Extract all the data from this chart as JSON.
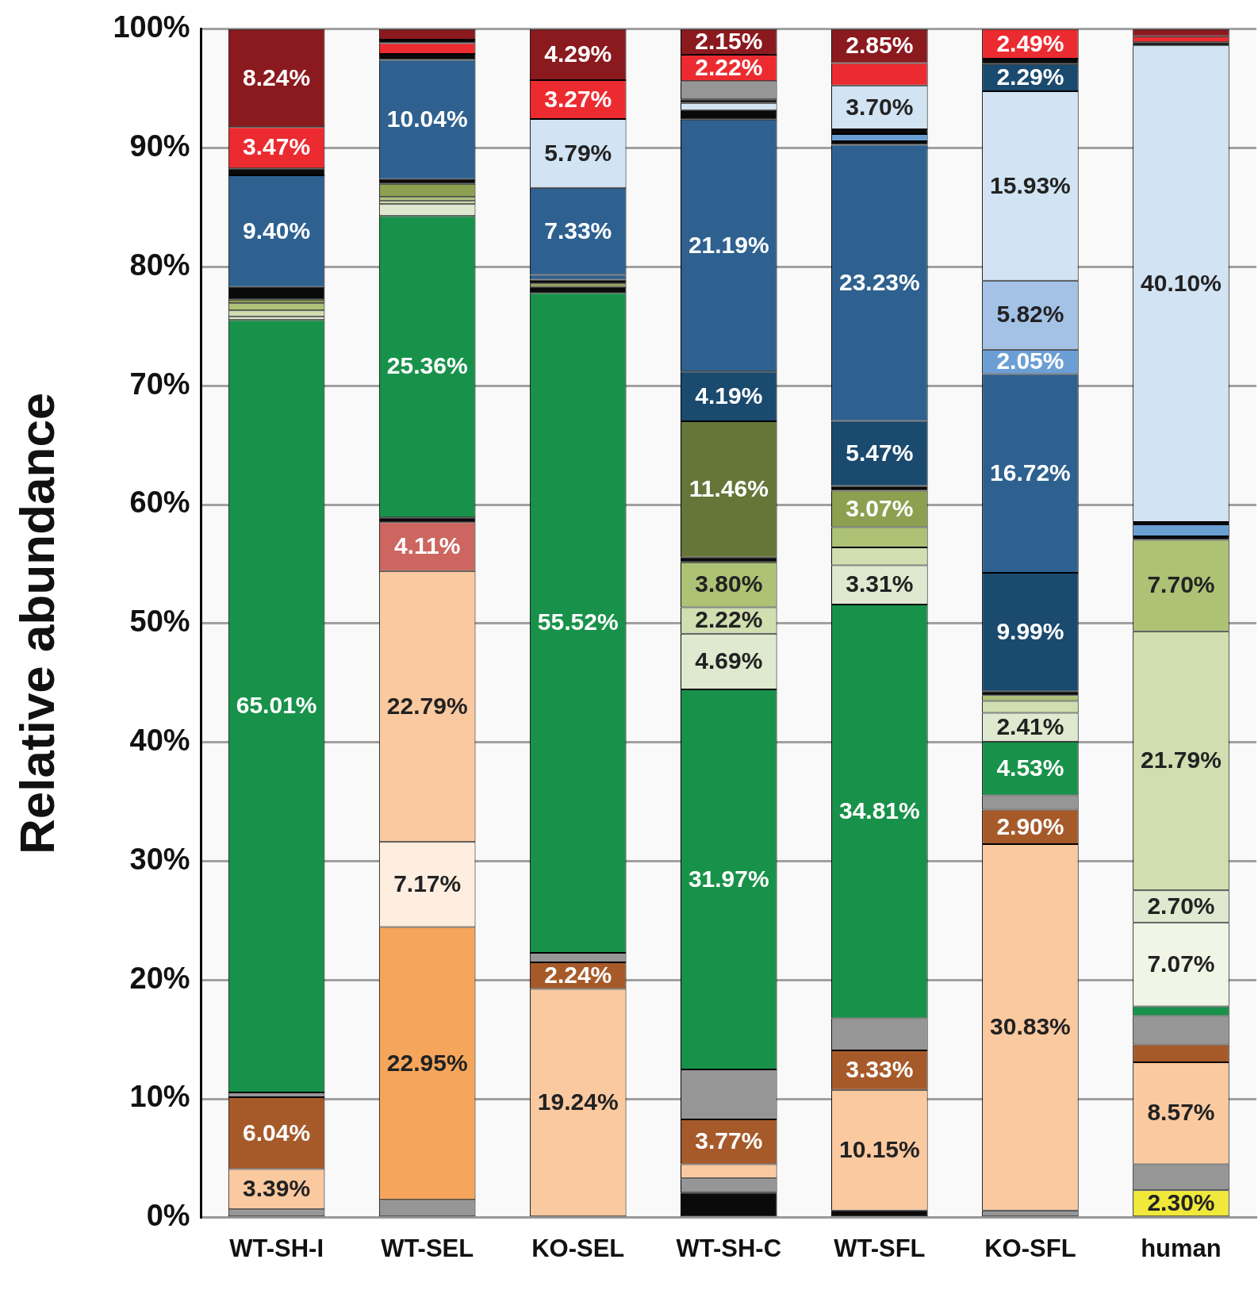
{
  "chart_data": {
    "type": "bar",
    "stacked": true,
    "ylabel": "Relative abundance",
    "categories": [
      "WT-SH-I",
      "WT-SEL",
      "KO-SEL",
      "WT-SH-C",
      "WT-SFL",
      "KO-SFL",
      "human"
    ],
    "ylim": [
      0,
      100
    ],
    "yticks": [
      {
        "value": 0,
        "label": "0%"
      },
      {
        "value": 10,
        "label": "10%"
      },
      {
        "value": 20,
        "label": "20%"
      },
      {
        "value": 30,
        "label": "30%"
      },
      {
        "value": 40,
        "label": "40%"
      },
      {
        "value": 50,
        "label": "50%"
      },
      {
        "value": 60,
        "label": "60%"
      },
      {
        "value": 70,
        "label": "70%"
      },
      {
        "value": 80,
        "label": "80%"
      },
      {
        "value": 90,
        "label": "90%"
      },
      {
        "value": 100,
        "label": "100%"
      }
    ],
    "grid": "y",
    "series": [
      {
        "values": [
          0.7,
          1.5,
          19.24,
          2.1,
          0.6,
          0.6,
          2.3
        ],
        "colors": [
          "#969696",
          "#969696",
          "#fbc9a0",
          "#0a0a0a",
          "#0a0a0a",
          "#969696",
          "#f0e83a"
        ],
        "value_labels": [
          null,
          null,
          "19.24%",
          null,
          null,
          null,
          "2.30%"
        ]
      },
      {
        "values": [
          3.39,
          22.95,
          2.24,
          1.2,
          10.15,
          30.83,
          2.2
        ],
        "colors": [
          "#fbc9a0",
          "#f5a65b",
          "#a65a2a",
          "#969696",
          "#fbc9a0",
          "#fbc9a0",
          "#969696"
        ],
        "value_labels": [
          "3.39%",
          "22.95%",
          "2.24%",
          null,
          "10.15%",
          "30.83%",
          null
        ]
      },
      {
        "values": [
          6.04,
          7.17,
          0.8,
          1.2,
          3.33,
          2.9,
          8.57
        ],
        "colors": [
          "#a65a2a",
          "#fdeee0",
          "#969696",
          "#fbc9a0",
          "#a65a2a",
          "#a65a2a",
          "#fbc9a0"
        ],
        "value_labels": [
          "6.04%",
          "7.17%",
          null,
          null,
          "3.33%",
          "2.90%",
          "8.57%"
        ]
      },
      {
        "values": [
          0.4,
          22.79,
          55.52,
          3.77,
          2.7,
          1.2,
          1.5
        ],
        "colors": [
          "#969696",
          "#fbc9a0",
          "#18924a",
          "#a65a2a",
          "#969696",
          "#969696",
          "#a65a2a"
        ],
        "value_labels": [
          null,
          "22.79%",
          "55.52%",
          "3.77%",
          null,
          null,
          null
        ]
      },
      {
        "values": [
          65.01,
          4.11,
          0.5,
          4.2,
          34.81,
          4.53,
          2.4
        ],
        "colors": [
          "#18924a",
          "#cd6660",
          "#0a0a0a",
          "#969696",
          "#18924a",
          "#18924a",
          "#969696"
        ],
        "value_labels": [
          "65.01%",
          "4.11%",
          null,
          null,
          "34.81%",
          "4.53%",
          null
        ]
      },
      {
        "values": [
          0.3,
          0.4,
          0.3,
          31.97,
          3.31,
          2.41,
          0.8
        ],
        "colors": [
          "#dfe9cf",
          "#0a0a0a",
          "#8ca050",
          "#18924a",
          "#dfe9cf",
          "#dfe9cf",
          "#18924a"
        ],
        "value_labels": [
          null,
          null,
          null,
          "31.97%",
          "3.31%",
          "2.41%",
          null
        ]
      },
      {
        "values": [
          0.5,
          25.36,
          0.32,
          4.69,
          1.5,
          1.0,
          7.07
        ],
        "colors": [
          "#d0deb0",
          "#18924a",
          "#0a0a0a",
          "#dfe9cf",
          "#d0deb0",
          "#d0deb0",
          "#f0f5e6"
        ],
        "value_labels": [
          null,
          "25.36%",
          null,
          "4.69%",
          null,
          null,
          "7.07%"
        ]
      },
      {
        "values": [
          0.6,
          1.0,
          0.4,
          2.22,
          1.7,
          0.5,
          2.7
        ],
        "colors": [
          "#adc275",
          "#dfe9cf",
          "#2e6190",
          "#d0deb0",
          "#adc275",
          "#adc275",
          "#dfe9cf"
        ],
        "value_labels": [
          null,
          null,
          null,
          "2.22%",
          null,
          null,
          "2.70%"
        ]
      },
      {
        "values": [
          0.3,
          0.3,
          7.33,
          3.8,
          3.07,
          0.3,
          21.79
        ],
        "colors": [
          "#8ca050",
          "#d0deb0",
          "#2e6190",
          "#adc275",
          "#8ca050",
          "#0a0a0a",
          "#d0deb0"
        ],
        "value_labels": [
          null,
          null,
          "7.33%",
          "3.80%",
          "3.07%",
          null,
          "21.79%"
        ]
      },
      {
        "values": [
          1.06,
          0.3,
          5.79,
          0.4,
          0.4,
          9.99,
          7.7
        ],
        "colors": [
          "#0a0a0a",
          "#adc275",
          "#d2e3f3",
          "#0a0a0a",
          "#0a0a0a",
          "#1a4a6e",
          "#adc275"
        ],
        "value_labels": [
          null,
          null,
          "5.79%",
          null,
          null,
          "9.99%",
          "7.70%"
        ]
      },
      {
        "values": [
          9.4,
          1.1,
          3.27,
          11.46,
          5.47,
          16.72,
          0.3
        ],
        "colors": [
          "#2e6190",
          "#8ca050",
          "#ec2b30",
          "#667538",
          "#1a4a6e",
          "#2e6190",
          "#0a0a0a"
        ],
        "value_labels": [
          "9.40%",
          null,
          "3.27%",
          "11.46%",
          "5.47%",
          "16.72%",
          null
        ]
      },
      {
        "values": [
          0.59,
          0.4,
          4.29,
          4.19,
          23.23,
          2.05,
          1.0
        ],
        "colors": [
          "#0a0a0a",
          "#0a0a0a",
          "#8b1a1f",
          "#1a4a6e",
          "#2e6190",
          "#6b9fd4",
          "#6b9fd4"
        ],
        "value_labels": [
          null,
          null,
          "4.29%",
          "4.19%",
          "23.23%",
          "2.05%",
          null
        ]
      },
      {
        "values": [
          3.47,
          10.04,
          null,
          21.19,
          0.3,
          5.82,
          0.2
        ],
        "colors": [
          "#ec2b30",
          "#2e6190",
          null,
          "#2e6190",
          "#0a0a0a",
          "#a3c2e6",
          "#0a0a0a"
        ],
        "value_labels": [
          "3.47%",
          "10.04%",
          null,
          "21.19%",
          null,
          "5.82%",
          null
        ]
      },
      {
        "values": [
          8.24,
          0.5,
          null,
          0.8,
          0.6,
          15.93,
          40.1
        ],
        "colors": [
          "#8b1a1f",
          "#0a0a0a",
          null,
          "#0a0a0a",
          "#6b9fd4",
          "#d2e3f3",
          "#d2e3f3"
        ],
        "value_labels": [
          "8.24%",
          null,
          null,
          null,
          null,
          "15.93%",
          "40.10%"
        ]
      },
      {
        "values": [
          null,
          0.9,
          null,
          0.6,
          0.4,
          2.29,
          0.27
        ],
        "colors": [
          null,
          "#ec2b30",
          null,
          "#d2e3f3",
          "#0a0a0a",
          "#1a4a6e",
          "#0a0a0a"
        ],
        "value_labels": [
          null,
          null,
          null,
          null,
          null,
          "2.29%",
          null
        ]
      },
      {
        "values": [
          null,
          0.3,
          null,
          0.3,
          3.7,
          0.44,
          0.5
        ],
        "colors": [
          null,
          "#0a0a0a",
          null,
          "#0a0a0a",
          "#d2e3f3",
          "#0a0a0a",
          "#ec2b30"
        ],
        "value_labels": [
          null,
          null,
          null,
          null,
          "3.70%",
          null,
          null
        ]
      },
      {
        "values": [
          null,
          0.88,
          null,
          1.54,
          1.88,
          2.49,
          0.6
        ],
        "colors": [
          null,
          "#8b1a1f",
          null,
          "#969696",
          "#ec2b30",
          "#ec2b30",
          "#8b1a1f"
        ],
        "value_labels": [
          null,
          null,
          null,
          null,
          null,
          "2.49%",
          null
        ]
      },
      {
        "values": [
          null,
          null,
          null,
          2.22,
          2.85,
          null,
          null
        ],
        "colors": [
          null,
          null,
          null,
          "#ec2b30",
          "#8b1a1f",
          null,
          null
        ],
        "value_labels": [
          null,
          null,
          null,
          "2.22%",
          "2.85%",
          null,
          null
        ]
      },
      {
        "values": [
          null,
          null,
          null,
          2.15,
          null,
          null,
          null
        ],
        "colors": [
          null,
          null,
          null,
          "#8b1a1f",
          null,
          null,
          null
        ],
        "value_labels": [
          null,
          null,
          null,
          "2.15%",
          null,
          null,
          null
        ]
      }
    ]
  }
}
